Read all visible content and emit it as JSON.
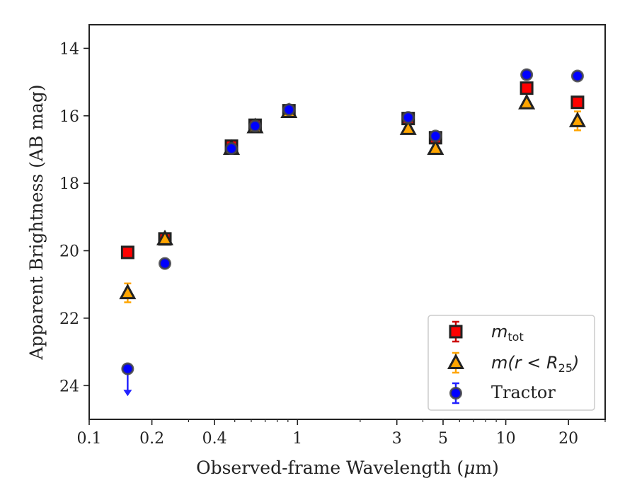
{
  "chart_data": {
    "type": "scatter",
    "xlabel_prefix": "Observed-frame Wavelength (",
    "xlabel_mu": "μ",
    "xlabel_suffix": "m)",
    "ylabel": "Apparent Brightness (AB mag)",
    "xscale": "log",
    "xlim": [
      0.1,
      30
    ],
    "ylim": [
      25,
      13.3
    ],
    "y_inverted": true,
    "grid": false,
    "legend_position": "bottom-right",
    "x_ticks": [
      {
        "value": 0.1,
        "label": "0.1"
      },
      {
        "value": 0.2,
        "label": "0.2"
      },
      {
        "value": 0.4,
        "label": "0.4"
      },
      {
        "value": 1,
        "label": "1"
      },
      {
        "value": 3,
        "label": "3"
      },
      {
        "value": 5,
        "label": "5"
      },
      {
        "value": 10,
        "label": "10"
      },
      {
        "value": 20,
        "label": "20"
      }
    ],
    "y_ticks": [
      {
        "value": 14,
        "label": "14"
      },
      {
        "value": 16,
        "label": "16"
      },
      {
        "value": 18,
        "label": "18"
      },
      {
        "value": 20,
        "label": "20"
      },
      {
        "value": 22,
        "label": "22"
      },
      {
        "value": 24,
        "label": "24"
      }
    ],
    "series": [
      {
        "key": "mtot",
        "legend_main": "m",
        "legend_sub": "tot",
        "marker": "square",
        "color": "#ff0000",
        "edge_color": "#222222",
        "errcolor": "#cc0000",
        "points": [
          {
            "x": 0.153,
            "y": 20.05,
            "err": 0.1
          },
          {
            "x": 0.231,
            "y": 19.65,
            "err": 0.05
          },
          {
            "x": 0.482,
            "y": 16.9,
            "err": 0.05
          },
          {
            "x": 0.626,
            "y": 16.28,
            "err": 0.03
          },
          {
            "x": 0.91,
            "y": 15.85,
            "err": 0.03
          },
          {
            "x": 3.4,
            "y": 16.08,
            "err": 0.03
          },
          {
            "x": 4.6,
            "y": 16.65,
            "err": 0.05
          },
          {
            "x": 12.6,
            "y": 15.18,
            "err": 0.05
          },
          {
            "x": 22.1,
            "y": 15.6,
            "err": 0.1
          }
        ]
      },
      {
        "key": "mr25",
        "legend_main": "m(r < R",
        "legend_sub": "25",
        "legend_tail": ")",
        "marker": "triangle",
        "color": "#ffa500",
        "edge_color": "#222222",
        "errcolor": "#ffa500",
        "points": [
          {
            "x": 0.153,
            "y": 21.25,
            "err": 0.28
          },
          {
            "x": 0.231,
            "y": 19.65,
            "err": 0.05
          },
          {
            "x": 0.482,
            "y": 16.97,
            "err": 0.04
          },
          {
            "x": 0.626,
            "y": 16.33,
            "err": 0.03
          },
          {
            "x": 0.91,
            "y": 15.88,
            "err": 0.03
          },
          {
            "x": 3.4,
            "y": 16.38,
            "err": 0.03
          },
          {
            "x": 4.6,
            "y": 16.97,
            "err": 0.05
          },
          {
            "x": 12.6,
            "y": 15.62,
            "err": 0.06
          },
          {
            "x": 22.1,
            "y": 16.15,
            "err": 0.28
          }
        ]
      },
      {
        "key": "tractor",
        "legend_main": "Tractor",
        "marker": "circle",
        "color": "#0000ff",
        "edge_color": "#444444",
        "errcolor": "#2222ff",
        "points": [
          {
            "x": 0.153,
            "y": 23.5,
            "upper_limit": true
          },
          {
            "x": 0.231,
            "y": 20.38,
            "err": 0.03
          },
          {
            "x": 0.482,
            "y": 16.97,
            "err": 0.03
          },
          {
            "x": 0.626,
            "y": 16.3,
            "err": 0.02
          },
          {
            "x": 0.91,
            "y": 15.82,
            "err": 0.02
          },
          {
            "x": 3.4,
            "y": 16.05,
            "err": 0.02
          },
          {
            "x": 4.6,
            "y": 16.6,
            "err": 0.03
          },
          {
            "x": 12.6,
            "y": 14.78,
            "err": 0.05
          },
          {
            "x": 22.1,
            "y": 14.82,
            "err": 0.05
          }
        ]
      }
    ]
  }
}
